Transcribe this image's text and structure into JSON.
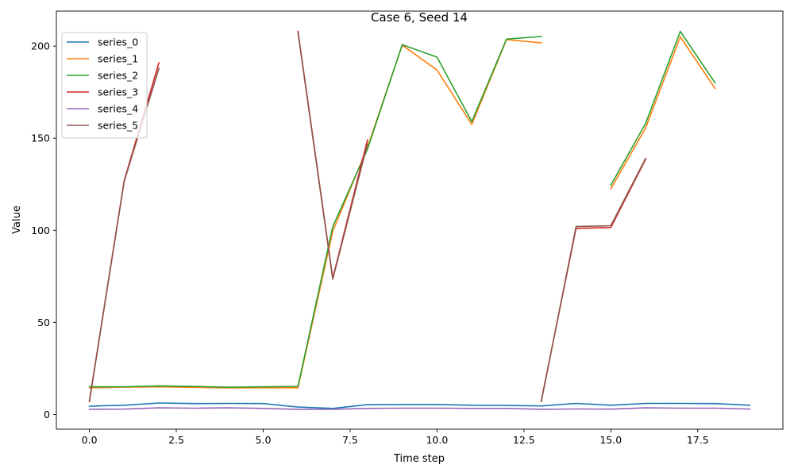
{
  "chart_data": {
    "type": "line",
    "title": "Case 6, Seed 14",
    "xlabel": "Time step",
    "ylabel": "Value",
    "xlim": [
      -0.95,
      19.95
    ],
    "ylim": [
      -8,
      219
    ],
    "xticks": [
      0.0,
      2.5,
      5.0,
      7.5,
      10.0,
      12.5,
      15.0,
      17.5
    ],
    "xtick_labels": [
      "0.0",
      "2.5",
      "5.0",
      "7.5",
      "10.0",
      "12.5",
      "15.0",
      "17.5"
    ],
    "yticks": [
      0,
      50,
      100,
      150,
      200
    ],
    "ytick_labels": [
      "0",
      "50",
      "100",
      "150",
      "200"
    ],
    "grid": false,
    "legend_position": "top-left",
    "x": [
      0,
      1,
      2,
      3,
      4,
      5,
      6,
      7,
      8,
      9,
      10,
      11,
      12,
      13,
      14,
      15,
      16,
      17,
      18,
      19
    ],
    "series": [
      {
        "name": "series_0",
        "color": "#1f77b4",
        "values": [
          4.5,
          5.0,
          6.2,
          5.9,
          6.0,
          5.9,
          4.0,
          3.3,
          5.3,
          5.4,
          5.4,
          5.0,
          4.9,
          4.6,
          6.0,
          5.0,
          6.0,
          6.0,
          5.9,
          5.0
        ]
      },
      {
        "name": "series_1",
        "color": "#ff7f0e",
        "values": [
          14.5,
          14.8,
          15.0,
          14.7,
          14.4,
          14.5,
          14.5,
          99.5,
          145.0,
          200.5,
          187.0,
          157.5,
          203.5,
          201.8,
          null,
          122.5,
          155.5,
          205.0,
          177.0,
          null
        ]
      },
      {
        "name": "series_2",
        "color": "#2ca02c",
        "values": [
          15.0,
          15.0,
          15.5,
          15.2,
          14.8,
          15.0,
          15.2,
          102.0,
          144.0,
          200.8,
          194.0,
          159.0,
          203.8,
          205.2,
          null,
          124.5,
          158.0,
          208.0,
          180.0,
          null
        ]
      },
      {
        "name": "series_3",
        "color": "#d62728",
        "values": [
          7.0,
          127.0,
          191.0,
          null,
          null,
          null,
          208.0,
          74.0,
          149.0,
          null,
          null,
          null,
          null,
          7.5,
          101.0,
          101.5,
          138.5,
          null,
          null,
          null
        ]
      },
      {
        "name": "series_4",
        "color": "#9467bd",
        "values": [
          2.8,
          2.9,
          3.6,
          3.4,
          3.6,
          3.3,
          2.8,
          2.8,
          3.3,
          3.4,
          3.4,
          3.3,
          3.3,
          2.8,
          3.0,
          2.9,
          3.6,
          3.4,
          3.4,
          2.9
        ]
      },
      {
        "name": "series_5",
        "color": "#8c564b",
        "values": [
          7.5,
          126.5,
          188.0,
          null,
          null,
          null,
          207.5,
          73.5,
          147.0,
          null,
          null,
          null,
          null,
          7.0,
          102.0,
          102.5,
          139.0,
          null,
          null,
          null
        ]
      }
    ]
  }
}
